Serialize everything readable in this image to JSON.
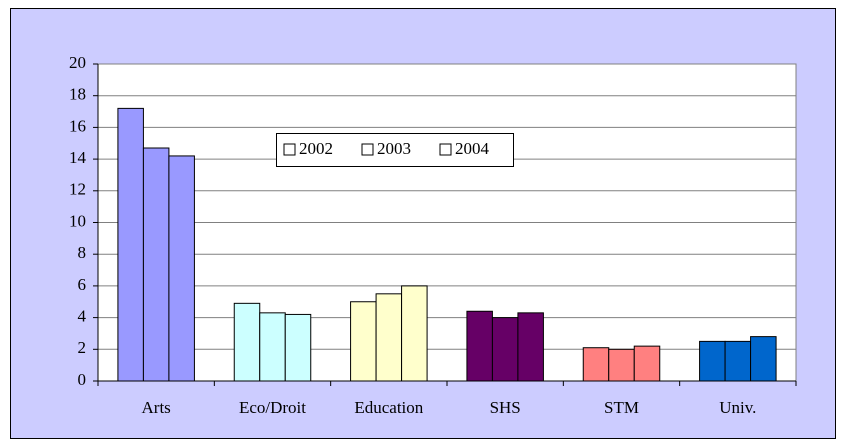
{
  "chart_data": {
    "type": "bar",
    "categories": [
      "Arts",
      "Eco/Droit",
      "Education",
      "SHS",
      "STM",
      "Univ."
    ],
    "colors": [
      "#9999FF",
      "#CCFFFF",
      "#FFFFCC",
      "#660066",
      "#FF8080",
      "#0066CC"
    ],
    "series": [
      {
        "name": "2002",
        "color": "#FFFFFF",
        "values": [
          17.2,
          4.9,
          5.0,
          4.4,
          2.1,
          2.5
        ]
      },
      {
        "name": "2003",
        "color": "#FFFFFF",
        "values": [
          14.7,
          4.3,
          5.5,
          4.0,
          2.0,
          2.5
        ]
      },
      {
        "name": "2004",
        "color": "#FFFFFF",
        "values": [
          14.2,
          4.2,
          6.0,
          4.3,
          2.2,
          2.8
        ]
      }
    ],
    "ylim": [
      0,
      20
    ],
    "yticks": [
      0,
      2,
      4,
      6,
      8,
      10,
      12,
      14,
      16,
      18,
      20
    ],
    "grid": true
  }
}
